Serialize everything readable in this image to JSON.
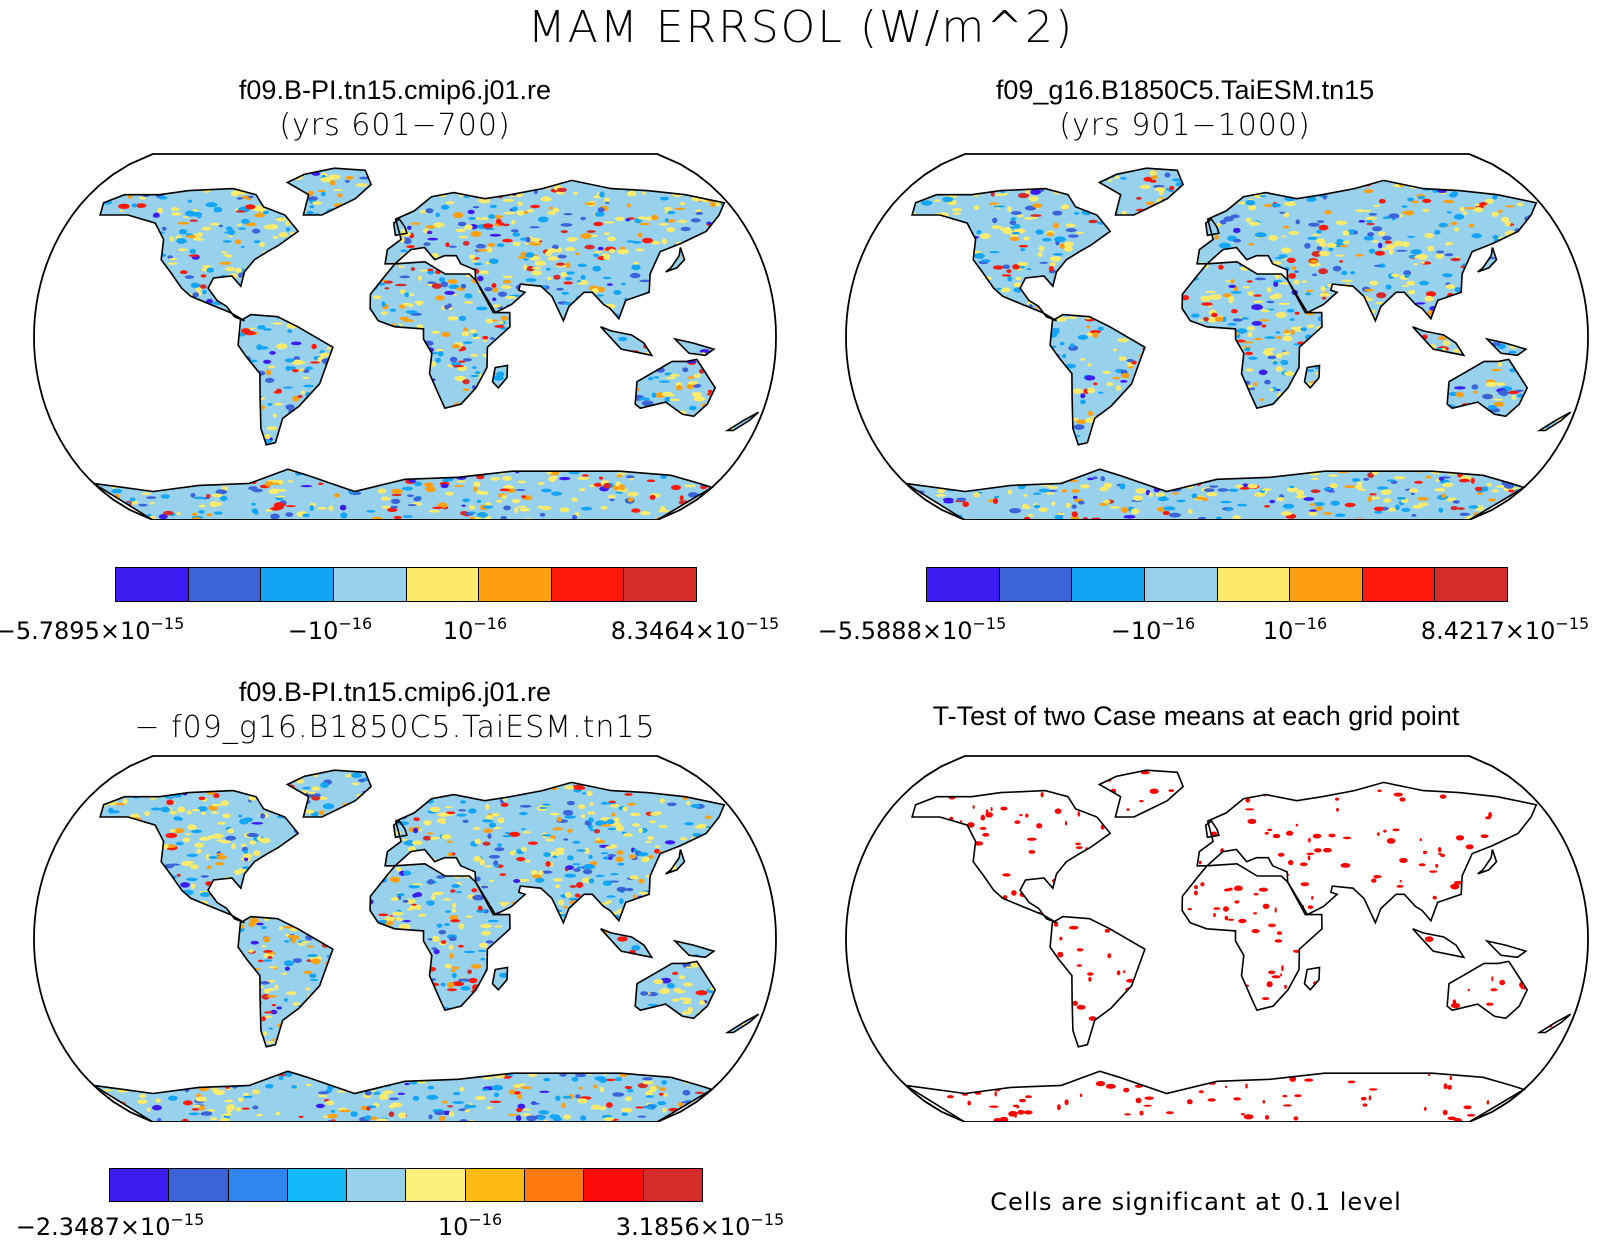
{
  "title": "MAM ERRSOL (W/m^2)",
  "panels": [
    {
      "title": "f09.B-PI.tn15.cmip6.j01.re",
      "subtitle": "(yrs 601−700)",
      "kind": "field",
      "colorbar": {
        "colors": [
          "#3b1df2",
          "#3d63d9",
          "#14a5f5",
          "#97d1ec",
          "#fdeb6b",
          "#fd9f0f",
          "#fd1a0a",
          "#d42b2b"
        ],
        "labels": [
          {
            "mant": "−5.7895×10",
            "exp": "−15"
          },
          {
            "mant": "−10",
            "exp": "−16"
          },
          {
            "mant": "10",
            "exp": "−16"
          },
          {
            "mant": "8.3464×10",
            "exp": "−15"
          }
        ]
      }
    },
    {
      "title": "f09_g16.B1850C5.TaiESM.tn15",
      "subtitle": "(yrs 901−1000)",
      "kind": "field",
      "colorbar": {
        "colors": [
          "#3b1df2",
          "#3d63d9",
          "#14a5f5",
          "#97d1ec",
          "#fdeb6b",
          "#fd9f0f",
          "#fd1a0a",
          "#d42b2b"
        ],
        "labels": [
          {
            "mant": "−5.5888×10",
            "exp": "−15"
          },
          {
            "mant": "−10",
            "exp": "−16"
          },
          {
            "mant": "10",
            "exp": "−16"
          },
          {
            "mant": "8.4217×10",
            "exp": "−15"
          }
        ]
      }
    },
    {
      "title": "f09.B-PI.tn15.cmip6.j01.re",
      "subtitle": "− f09_g16.B1850C5.TaiESM.tn15",
      "kind": "field",
      "colorbar": {
        "colors": [
          "#3b1df2",
          "#3d63d9",
          "#2f86f0",
          "#14b9f7",
          "#97d1ec",
          "#fdf07a",
          "#fdbb12",
          "#fd7a12",
          "#fd0a0a",
          "#d42b2b"
        ],
        "labels": [
          {
            "mant": "−2.3487×10",
            "exp": "−15"
          },
          {
            "mant": "10",
            "exp": "−16"
          },
          {
            "mant": "3.1856×10",
            "exp": "−15"
          }
        ]
      }
    },
    {
      "title": "T-Test of two Case means at each grid point",
      "subtitle": "",
      "kind": "ttest",
      "footnote": "Cells are significant at 0.1 level"
    }
  ],
  "map_colors": {
    "field_base": "#97d1ec",
    "field_speckle": [
      "#fdeb6b",
      "#14a5f5",
      "#fd9f0f",
      "#3d63d9",
      "#fd1a0a",
      "#3b1df2",
      "#d42b2b"
    ],
    "ttest_speckle": "#ff0000"
  }
}
